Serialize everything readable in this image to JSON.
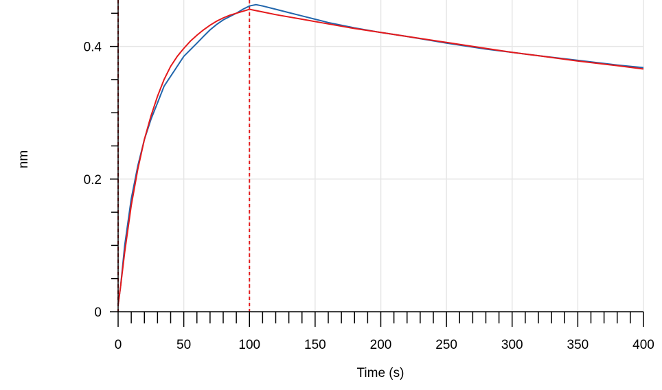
{
  "chart_data": {
    "type": "line",
    "xlabel": "Time (s)",
    "ylabel": "nm",
    "xlim": [
      0,
      400
    ],
    "ylim": [
      0,
      0.47
    ],
    "xticks": [
      0,
      50,
      100,
      150,
      200,
      250,
      300,
      350,
      400
    ],
    "xtick_labels": [
      "0",
      "50",
      "100",
      "150",
      "200",
      "250",
      "300",
      "350",
      "400"
    ],
    "yticks": [
      0,
      0.2,
      0.4
    ],
    "ytick_labels": [
      "0",
      "0.2",
      "0.4"
    ],
    "x_minor_step": 10,
    "y_minor_step": 0.05,
    "grid": true,
    "vertical_markers": [
      {
        "x": 0,
        "color": "#e41a1c",
        "style": "dashed"
      },
      {
        "x": 100,
        "color": "#e41a1c",
        "style": "dashed"
      }
    ],
    "series": [
      {
        "color": "#2166ac",
        "x": [
          0,
          2,
          5,
          10,
          15,
          20,
          25,
          30,
          35,
          40,
          45,
          50,
          55,
          60,
          65,
          70,
          75,
          80,
          85,
          90,
          95,
          100,
          105,
          110,
          120,
          130,
          140,
          150,
          160,
          180,
          200,
          220,
          250,
          280,
          300,
          320,
          350,
          380,
          400
        ],
        "values": [
          0.01,
          0.04,
          0.1,
          0.17,
          0.22,
          0.26,
          0.29,
          0.315,
          0.34,
          0.355,
          0.37,
          0.385,
          0.395,
          0.405,
          0.415,
          0.425,
          0.433,
          0.44,
          0.445,
          0.45,
          0.456,
          0.461,
          0.463,
          0.461,
          0.456,
          0.451,
          0.446,
          0.441,
          0.436,
          0.428,
          0.421,
          0.415,
          0.405,
          0.396,
          0.391,
          0.386,
          0.379,
          0.372,
          0.368
        ]
      },
      {
        "color": "#e41a1c",
        "x": [
          0,
          2,
          5,
          10,
          15,
          20,
          25,
          30,
          35,
          40,
          45,
          50,
          55,
          60,
          65,
          70,
          75,
          80,
          85,
          90,
          95,
          100,
          110,
          120,
          140,
          160,
          180,
          200,
          220,
          250,
          280,
          300,
          320,
          350,
          380,
          400
        ],
        "values": [
          0.01,
          0.04,
          0.09,
          0.16,
          0.215,
          0.26,
          0.295,
          0.325,
          0.35,
          0.37,
          0.385,
          0.397,
          0.408,
          0.417,
          0.425,
          0.432,
          0.438,
          0.443,
          0.447,
          0.45,
          0.453,
          0.456,
          0.452,
          0.448,
          0.441,
          0.434,
          0.427,
          0.421,
          0.415,
          0.406,
          0.397,
          0.391,
          0.386,
          0.378,
          0.371,
          0.366
        ]
      }
    ]
  }
}
